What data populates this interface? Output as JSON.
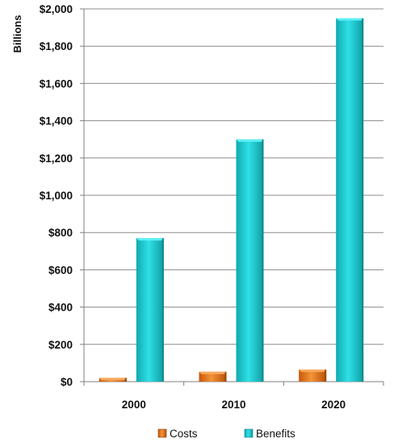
{
  "chart_data": {
    "type": "bar",
    "title": "",
    "xlabel": "",
    "ylabel": "Billions",
    "categories": [
      "2000",
      "2010",
      "2020"
    ],
    "series": [
      {
        "name": "Costs",
        "values": [
          20,
          53,
          65
        ],
        "color": "#e46c0a"
      },
      {
        "name": "Benefits",
        "values": [
          770,
          1300,
          1950
        ],
        "color": "#17c3c9"
      }
    ],
    "ylim": [
      0,
      2000
    ],
    "yticks": [
      0,
      200,
      400,
      600,
      800,
      1000,
      1200,
      1400,
      1600,
      1800,
      2000
    ],
    "ytick_labels": [
      "$0",
      "$200",
      "$400",
      "$600",
      "$800",
      "$1,000",
      "$1,200",
      "$1,400",
      "$1,600",
      "$1,800",
      "$2,000"
    ],
    "grid": true,
    "legend_position": "bottom"
  }
}
